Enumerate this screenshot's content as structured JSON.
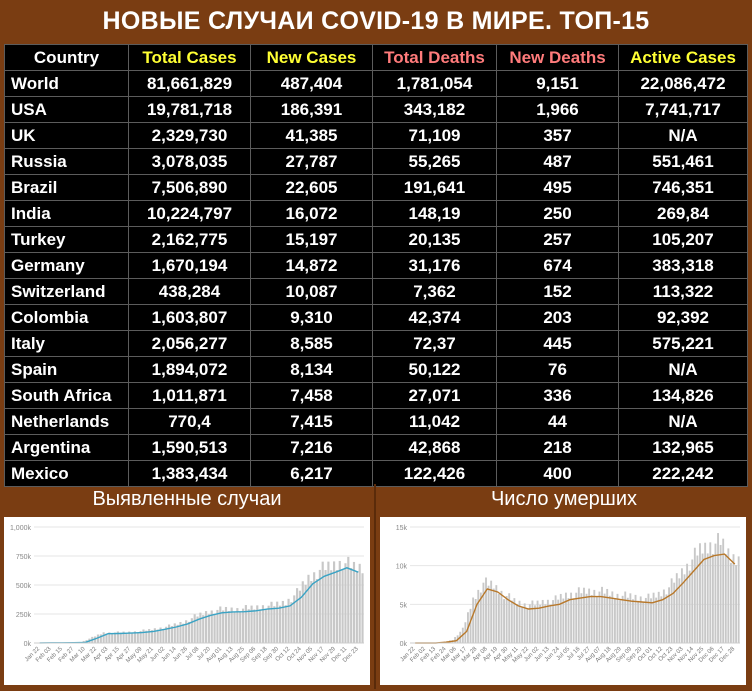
{
  "title": "НОВЫЕ СЛУЧАИ COVID-19 В МИРЕ. ТОП-15",
  "colors": {
    "background": "#7a3d12",
    "table_bg": "#000000",
    "header_yellow": "#ffff33",
    "header_red": "#ff7b7b",
    "cases_line": "#3aa3c4",
    "deaths_line": "#b8782a",
    "bars": "#c8c8c8"
  },
  "table": {
    "headers": [
      "Country",
      "Total Cases",
      "New Cases",
      "Total Deaths",
      "New Deaths",
      "Active Cases"
    ],
    "rows": [
      [
        "World",
        "81,661,829",
        "487,404",
        "1,781,054",
        "9,151",
        "22,086,472"
      ],
      [
        "USA",
        "19,781,718",
        "186,391",
        "343,182",
        "1,966",
        "7,741,717"
      ],
      [
        "UK",
        "2,329,730",
        "41,385",
        "71,109",
        "357",
        "N/A"
      ],
      [
        "Russia",
        "3,078,035",
        "27,787",
        "55,265",
        "487",
        "551,461"
      ],
      [
        "Brazil",
        "7,506,890",
        "22,605",
        "191,641",
        "495",
        "746,351"
      ],
      [
        "India",
        "10,224,797",
        "16,072",
        "148,19",
        "250",
        "269,84"
      ],
      [
        "Turkey",
        "2,162,775",
        "15,197",
        "20,135",
        "257",
        "105,207"
      ],
      [
        "Germany",
        "1,670,194",
        "14,872",
        "31,176",
        "674",
        "383,318"
      ],
      [
        "Switzerland",
        "438,284",
        "10,087",
        "7,362",
        "152",
        "113,322"
      ],
      [
        "Colombia",
        "1,603,807",
        "9,310",
        "42,374",
        "203",
        "92,392"
      ],
      [
        "Italy",
        "2,056,277",
        "8,585",
        "72,37",
        "445",
        "575,221"
      ],
      [
        "Spain",
        "1,894,072",
        "8,134",
        "50,122",
        "76",
        "N/A"
      ],
      [
        "South Africa",
        "1,011,871",
        "7,458",
        "27,071",
        "336",
        "134,826"
      ],
      [
        "Netherlands",
        "770,4",
        "7,415",
        "11,042",
        "44",
        "N/A"
      ],
      [
        "Argentina",
        "1,590,513",
        "7,216",
        "42,868",
        "218",
        "132,965"
      ],
      [
        "Mexico",
        "1,383,434",
        "6,217",
        "122,426",
        "400",
        "222,242"
      ]
    ]
  },
  "chart_data": [
    {
      "type": "bar",
      "title": "Выявленные случаи",
      "yticks": [
        "1,000k",
        "750k",
        "500k",
        "250k",
        "0k"
      ],
      "ytick_values": [
        1000,
        750,
        500,
        250,
        0
      ],
      "ylim": [
        0,
        1000
      ],
      "xticks": [
        "Jan 22",
        "Feb 03",
        "Feb 15",
        "Feb 27",
        "Mar 10",
        "Mar 22",
        "Apr 03",
        "Apr 15",
        "Apr 27",
        "May 09",
        "May 21",
        "Jun 02",
        "Jun 14",
        "Jun 26",
        "Jul 08",
        "Jul 20",
        "Aug 01",
        "Aug 13",
        "Aug 25",
        "Sep 06",
        "Sep 18",
        "Sep 30",
        "Oct 12",
        "Oct 24",
        "Nov 05",
        "Nov 17",
        "Nov 29",
        "Dec 11",
        "Dec 23"
      ],
      "series": [
        {
          "kind": "line",
          "values": [
            1,
            2,
            2,
            3,
            5,
            40,
            80,
            82,
            85,
            90,
            100,
            118,
            138,
            165,
            205,
            238,
            260,
            268,
            270,
            278,
            292,
            300,
            320,
            395,
            510,
            575,
            610,
            648,
            610
          ]
        },
        {
          "kind": "bar",
          "values": [
            1,
            2,
            2,
            4,
            7,
            48,
            88,
            90,
            92,
            100,
            112,
            130,
            150,
            180,
            225,
            262,
            285,
            290,
            295,
            300,
            318,
            325,
            352,
            430,
            560,
            630,
            660,
            700,
            650
          ]
        }
      ]
    },
    {
      "type": "bar",
      "title": "Число умерших",
      "yticks": [
        "15k",
        "10k",
        "5k",
        "0k"
      ],
      "ytick_values": [
        15,
        10,
        5,
        0
      ],
      "ylim": [
        0,
        15
      ],
      "xticks": [
        "Jan 22",
        "Feb 02",
        "Feb 13",
        "Feb 24",
        "Mar 06",
        "Mar 17",
        "Mar 28",
        "Apr 08",
        "Apr 19",
        "Apr 30",
        "May 11",
        "May 22",
        "Jun 02",
        "Jun 13",
        "Jun 24",
        "Jul 05",
        "Jul 16",
        "Jul 27",
        "Aug 07",
        "Aug 18",
        "Aug 29",
        "Sep 09",
        "Sep 20",
        "Oct 01",
        "Oct 12",
        "Oct 23",
        "Nov 03",
        "Nov 14",
        "Nov 25",
        "Dec 06",
        "Dec 17",
        "Dec 28"
      ],
      "series": [
        {
          "kind": "line",
          "values": [
            0,
            0,
            0,
            0.1,
            0.3,
            1.5,
            5.0,
            7.0,
            6.6,
            5.6,
            4.8,
            4.4,
            4.5,
            4.8,
            5.0,
            5.6,
            5.8,
            6.0,
            6.0,
            5.8,
            5.6,
            5.4,
            5.3,
            5.2,
            5.6,
            6.4,
            7.8,
            9.3,
            10.8,
            11.3,
            11.5,
            10.2
          ]
        },
        {
          "kind": "bar",
          "values": [
            0,
            0,
            0,
            0.1,
            0.4,
            1.8,
            5.6,
            7.8,
            7.4,
            6.3,
            5.4,
            5.0,
            5.0,
            5.4,
            5.6,
            6.2,
            6.5,
            6.7,
            6.7,
            6.5,
            6.2,
            6.0,
            5.9,
            5.8,
            6.3,
            7.2,
            8.8,
            10.4,
            12.0,
            12.7,
            13.0,
            11.2
          ]
        }
      ]
    }
  ]
}
